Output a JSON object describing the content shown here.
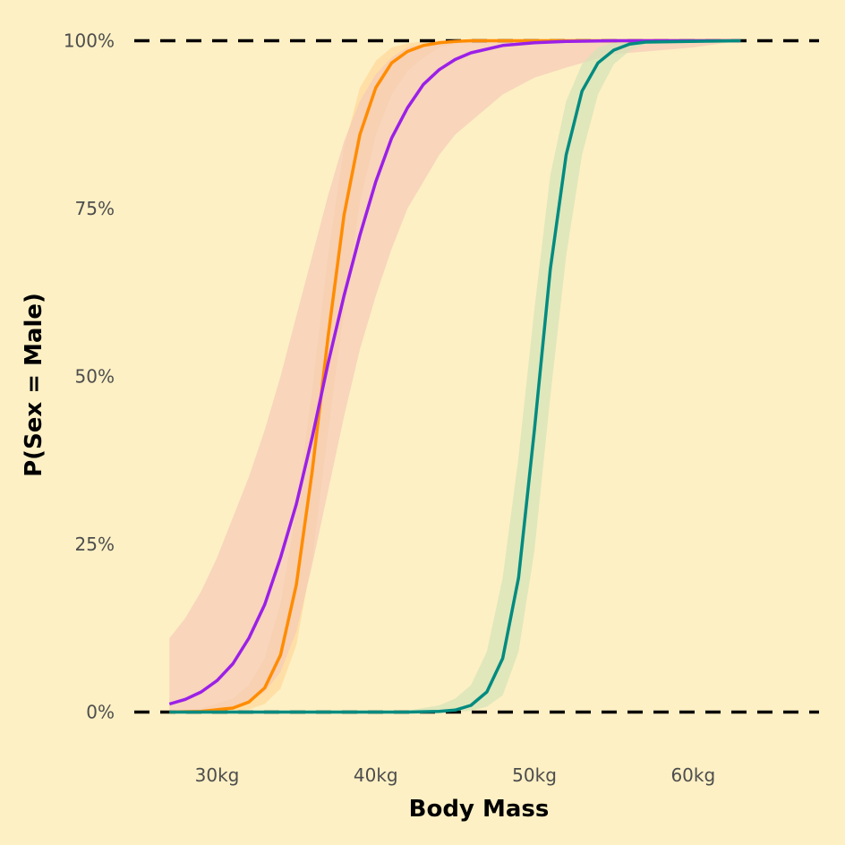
{
  "chart_data": {
    "type": "line",
    "title": "",
    "xlabel": "Body Mass",
    "ylabel": "P(Sex = Male)",
    "xlim": [
      24.5,
      68.5
    ],
    "ylim": [
      -0.07,
      1.05
    ],
    "x_ticks": [
      30,
      40,
      50,
      60
    ],
    "x_tick_labels": [
      "30kg",
      "40kg",
      "50kg",
      "60kg"
    ],
    "y_ticks": [
      0,
      0.25,
      0.5,
      0.75,
      1.0
    ],
    "y_tick_labels": [
      "0%",
      "25%",
      "50%",
      "75%",
      "100%"
    ],
    "grid": false,
    "legend": "none",
    "background": "#fdf0c4",
    "reference_lines": [
      {
        "y": 0,
        "style": "dashed",
        "color": "#000000"
      },
      {
        "y": 1,
        "style": "dashed",
        "color": "#000000"
      }
    ],
    "series": [
      {
        "color": "#ff8c00",
        "band_color": "#ffd799",
        "x": [
          27,
          29,
          31,
          32,
          33,
          34,
          35,
          36,
          37,
          38,
          39,
          40,
          41,
          42,
          43,
          44,
          45,
          46,
          47,
          48,
          63
        ],
        "y": [
          0.0,
          0.001,
          0.006,
          0.015,
          0.036,
          0.085,
          0.19,
          0.36,
          0.56,
          0.74,
          0.86,
          0.93,
          0.967,
          0.984,
          0.993,
          0.997,
          0.999,
          1.0,
          1.0,
          1.0,
          1.0
        ],
        "lower": [
          0.0,
          0.0,
          0.001,
          0.004,
          0.012,
          0.035,
          0.1,
          0.23,
          0.42,
          0.6,
          0.76,
          0.86,
          0.92,
          0.955,
          0.975,
          0.99,
          0.995,
          1.0,
          1.0,
          1.0,
          1.0
        ],
        "upper": [
          0.002,
          0.005,
          0.02,
          0.04,
          0.08,
          0.16,
          0.3,
          0.48,
          0.68,
          0.84,
          0.93,
          0.97,
          0.99,
          0.996,
          0.999,
          1.0,
          1.0,
          1.0,
          1.0,
          1.0,
          1.0
        ]
      },
      {
        "color": "#9b20e8",
        "band_color": "#f5c9b8",
        "x": [
          27,
          28,
          29,
          30,
          31,
          32,
          33,
          34,
          35,
          36,
          37,
          38,
          39,
          40,
          41,
          42,
          43,
          44,
          45,
          46,
          48,
          50,
          52,
          55,
          60,
          63
        ],
        "y": [
          0.012,
          0.019,
          0.03,
          0.047,
          0.072,
          0.11,
          0.16,
          0.23,
          0.31,
          0.41,
          0.52,
          0.62,
          0.71,
          0.79,
          0.855,
          0.9,
          0.935,
          0.957,
          0.972,
          0.982,
          0.993,
          0.997,
          0.999,
          1.0,
          1.0,
          1.0
        ],
        "lower": [
          0.0,
          0.001,
          0.002,
          0.004,
          0.008,
          0.015,
          0.03,
          0.06,
          0.12,
          0.22,
          0.33,
          0.44,
          0.54,
          0.62,
          0.69,
          0.75,
          0.79,
          0.83,
          0.86,
          0.88,
          0.92,
          0.945,
          0.96,
          0.98,
          0.99,
          1.0
        ],
        "upper": [
          0.11,
          0.14,
          0.18,
          0.23,
          0.29,
          0.35,
          0.42,
          0.5,
          0.59,
          0.68,
          0.77,
          0.85,
          0.91,
          0.95,
          0.975,
          0.99,
          0.995,
          1.0,
          1.0,
          1.0,
          1.0,
          1.0,
          1.0,
          1.0,
          1.0,
          1.0
        ]
      },
      {
        "color": "#008b80",
        "band_color": "#d3e3b8",
        "x": [
          27,
          42,
          44,
          45,
          46,
          47,
          48,
          49,
          50,
          51,
          52,
          53,
          54,
          55,
          56,
          57,
          63
        ],
        "y": [
          0.0,
          0.0,
          0.001,
          0.003,
          0.01,
          0.03,
          0.08,
          0.2,
          0.42,
          0.66,
          0.83,
          0.925,
          0.967,
          0.986,
          0.995,
          0.998,
          1.0
        ],
        "lower": [
          0.0,
          0.0,
          0.0,
          0.0,
          0.002,
          0.008,
          0.025,
          0.09,
          0.24,
          0.47,
          0.68,
          0.83,
          0.92,
          0.965,
          0.985,
          0.995,
          1.0
        ],
        "upper": [
          0.0,
          0.002,
          0.01,
          0.02,
          0.04,
          0.09,
          0.2,
          0.38,
          0.6,
          0.8,
          0.91,
          0.965,
          0.99,
          0.997,
          1.0,
          1.0,
          1.0
        ]
      }
    ]
  }
}
